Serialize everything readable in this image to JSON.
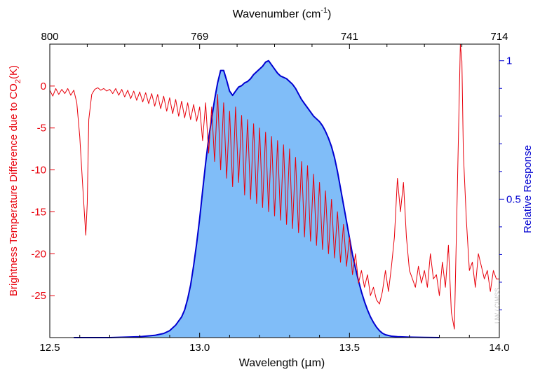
{
  "chart_data": {
    "type": "line",
    "title": "",
    "top_axis": {
      "label_main": "Wavenumber (cm",
      "label_sup": "-1",
      "label_end": ")",
      "ticks": [
        "800",
        "769",
        "741",
        "714"
      ],
      "tick_wavelengths": [
        12.5,
        13.0,
        13.5,
        14.0
      ]
    },
    "xlabel": {
      "main": "Wavelength (",
      "mu": "μ",
      "end": "m)"
    },
    "x_ticks": [
      "12.5",
      "13.0",
      "13.5",
      "14.0"
    ],
    "xlim": [
      12.5,
      14.0
    ],
    "left_axis": {
      "label_main": "Brightness Temperature Difference due to CO",
      "label_sub": "2",
      "label_end": "(K)",
      "ticks": [
        "0",
        "-5",
        "-10",
        "-15",
        "-20",
        "-25"
      ],
      "ylim": [
        -30,
        5
      ],
      "color": "#e8000b"
    },
    "right_axis": {
      "label": "Relative Response",
      "ticks": [
        "1",
        "0.5"
      ],
      "ylim": [
        0.0,
        1.06
      ],
      "color": "#0000d0"
    },
    "watermark": "UW / CIMSS",
    "series": [
      {
        "color": "#e8000b",
        "axis": "left",
        "x": [
          12.5,
          12.51,
          12.52,
          12.53,
          12.54,
          12.55,
          12.56,
          12.57,
          12.58,
          12.59,
          12.6,
          12.61,
          12.62,
          12.625,
          12.63,
          12.64,
          12.65,
          12.66,
          12.67,
          12.68,
          12.69,
          12.7,
          12.71,
          12.72,
          12.73,
          12.74,
          12.75,
          12.76,
          12.77,
          12.78,
          12.79,
          12.8,
          12.81,
          12.82,
          12.83,
          12.84,
          12.85,
          12.86,
          12.87,
          12.88,
          12.89,
          12.9,
          12.91,
          12.92,
          12.93,
          12.94,
          12.95,
          12.96,
          12.97,
          12.98,
          12.99,
          13.0,
          13.01,
          13.02,
          13.03,
          13.04,
          13.05,
          13.06,
          13.07,
          13.08,
          13.09,
          13.1,
          13.11,
          13.12,
          13.13,
          13.14,
          13.15,
          13.16,
          13.17,
          13.18,
          13.19,
          13.2,
          13.21,
          13.22,
          13.23,
          13.24,
          13.25,
          13.26,
          13.27,
          13.28,
          13.29,
          13.3,
          13.31,
          13.32,
          13.33,
          13.34,
          13.35,
          13.36,
          13.37,
          13.38,
          13.39,
          13.4,
          13.41,
          13.42,
          13.43,
          13.44,
          13.45,
          13.46,
          13.47,
          13.48,
          13.49,
          13.5,
          13.51,
          13.52,
          13.53,
          13.54,
          13.55,
          13.56,
          13.57,
          13.58,
          13.59,
          13.6,
          13.61,
          13.62,
          13.63,
          13.64,
          13.65,
          13.66,
          13.67,
          13.68,
          13.69,
          13.7,
          13.71,
          13.72,
          13.73,
          13.74,
          13.75,
          13.76,
          13.77,
          13.78,
          13.79,
          13.8,
          13.81,
          13.82,
          13.83,
          13.84,
          13.85,
          13.86,
          13.87,
          13.875,
          13.88,
          13.89,
          13.9,
          13.91,
          13.92,
          13.93,
          13.94,
          13.95,
          13.96,
          13.97,
          13.98,
          13.99,
          14.0
        ],
        "y": [
          -0.5,
          -1.2,
          -0.3,
          -1.0,
          -0.4,
          -0.9,
          -0.3,
          -1.1,
          -0.5,
          -2.0,
          -6.0,
          -12.0,
          -17.8,
          -14.0,
          -4.0,
          -1.0,
          -0.4,
          -0.2,
          -0.5,
          -0.3,
          -0.6,
          -0.4,
          -0.9,
          -0.3,
          -1.1,
          -0.4,
          -1.3,
          -0.5,
          -1.5,
          -0.6,
          -1.7,
          -0.7,
          -1.9,
          -0.8,
          -2.1,
          -0.9,
          -2.4,
          -1.0,
          -2.7,
          -1.2,
          -3.0,
          -1.4,
          -3.3,
          -1.6,
          -3.6,
          -1.8,
          -3.8,
          -2.0,
          -4.0,
          -2.2,
          -4.2,
          -2.5,
          -6.5,
          -2.0,
          -8.0,
          -2.5,
          -9.0,
          -1.0,
          -10.0,
          -2.0,
          -11.0,
          -3.0,
          -12.0,
          -2.5,
          -11.5,
          -3.5,
          -13.0,
          -4.0,
          -13.5,
          -4.5,
          -14.0,
          -5.0,
          -14.5,
          -5.5,
          -15.0,
          -6.0,
          -15.5,
          -6.5,
          -16.0,
          -7.0,
          -16.5,
          -7.5,
          -17.0,
          -8.5,
          -17.5,
          -9.0,
          -18.0,
          -9.5,
          -18.5,
          -10.5,
          -19.0,
          -11.5,
          -19.5,
          -12.5,
          -20.0,
          -13.5,
          -20.5,
          -15.0,
          -21.0,
          -16.5,
          -21.5,
          -18.0,
          -22.5,
          -20.0,
          -23.5,
          -22.0,
          -24.0,
          -22.5,
          -25.0,
          -24.0,
          -25.5,
          -26.0,
          -24.5,
          -22.0,
          -24.5,
          -21.5,
          -18.0,
          -11.0,
          -15.0,
          -11.5,
          -18.0,
          -22.0,
          -23.0,
          -24.0,
          -21.5,
          -23.5,
          -22.0,
          -24.0,
          -20.0,
          -23.0,
          -22.5,
          -25.0,
          -21.0,
          -24.0,
          -19.0,
          -27.0,
          -29.0,
          -12.0,
          5.0,
          3.0,
          -8.0,
          -16.0,
          -22.0,
          -21.0,
          -24.0,
          -20.0,
          -21.5,
          -23.0,
          -22.0,
          -24.5,
          -22.0,
          -23.0,
          -23.0
        ]
      },
      {
        "color": "#0000d0",
        "fill": "#80bdf8",
        "axis": "right",
        "x": [
          12.58,
          12.7,
          12.8,
          12.85,
          12.88,
          12.9,
          12.92,
          12.94,
          12.95,
          12.96,
          12.97,
          12.98,
          12.99,
          13.0,
          13.01,
          13.02,
          13.03,
          13.04,
          13.05,
          13.06,
          13.07,
          13.08,
          13.09,
          13.1,
          13.11,
          13.12,
          13.13,
          13.14,
          13.15,
          13.16,
          13.17,
          13.18,
          13.19,
          13.2,
          13.21,
          13.22,
          13.23,
          13.24,
          13.25,
          13.26,
          13.27,
          13.28,
          13.29,
          13.3,
          13.31,
          13.32,
          13.33,
          13.34,
          13.35,
          13.36,
          13.37,
          13.38,
          13.39,
          13.4,
          13.41,
          13.42,
          13.43,
          13.44,
          13.45,
          13.46,
          13.47,
          13.48,
          13.49,
          13.5,
          13.51,
          13.52,
          13.53,
          13.54,
          13.55,
          13.56,
          13.57,
          13.58,
          13.59,
          13.6,
          13.61,
          13.62,
          13.64,
          13.66,
          13.7,
          13.75,
          13.8
        ],
        "y": [
          0.0,
          0.0,
          0.003,
          0.008,
          0.015,
          0.025,
          0.045,
          0.075,
          0.1,
          0.14,
          0.19,
          0.26,
          0.34,
          0.43,
          0.53,
          0.63,
          0.72,
          0.79,
          0.86,
          0.92,
          0.965,
          0.965,
          0.93,
          0.89,
          0.875,
          0.89,
          0.905,
          0.91,
          0.92,
          0.925,
          0.935,
          0.95,
          0.96,
          0.97,
          0.98,
          0.995,
          1.0,
          0.985,
          0.97,
          0.955,
          0.945,
          0.94,
          0.935,
          0.925,
          0.915,
          0.9,
          0.88,
          0.86,
          0.845,
          0.83,
          0.815,
          0.8,
          0.79,
          0.78,
          0.765,
          0.745,
          0.72,
          0.69,
          0.65,
          0.6,
          0.54,
          0.48,
          0.42,
          0.36,
          0.3,
          0.25,
          0.205,
          0.165,
          0.13,
          0.1,
          0.075,
          0.055,
          0.038,
          0.025,
          0.016,
          0.01,
          0.005,
          0.003,
          0.0015,
          0.0005,
          0.0
        ]
      }
    ]
  }
}
